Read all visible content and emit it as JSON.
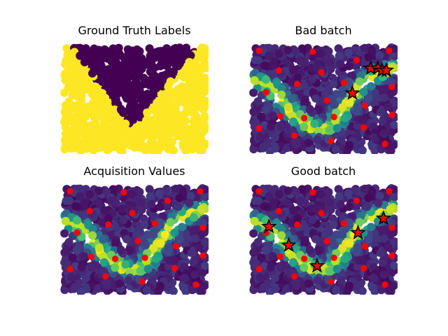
{
  "figure": {
    "panels": [
      {
        "title": "Ground Truth Labels"
      },
      {
        "title": "Bad batch"
      },
      {
        "title": "Acquisition Values"
      },
      {
        "title": "Good batch"
      }
    ]
  },
  "chart_data": [
    {
      "type": "scatter",
      "title": "Ground Truth Labels",
      "xlabel": "",
      "ylabel": "",
      "axes_visible": false,
      "xlim": [
        0,
        1
      ],
      "ylim": [
        0,
        1
      ],
      "colormap": "viridis",
      "field": "binary labels: yellow (1) left, right and bottom band; dark purple (0) inside a V shaped region with apex near (0.47, 0.22)",
      "label_region_v": {
        "apex": [
          0.47,
          0.22
        ],
        "left_top_x": 0.06,
        "right_top_x": 0.95
      },
      "colors": {
        "class0": "#440154",
        "class1": "#fde725",
        "marker": "#ff0000",
        "star": "#ff0000",
        "edge": "#000000"
      }
    },
    {
      "type": "scatter",
      "title": "Bad batch",
      "xlabel": "",
      "ylabel": "",
      "axes_visible": false,
      "xlim": [
        0,
        1
      ],
      "ylim": [
        0,
        1
      ],
      "colormap": "viridis",
      "field": "acquisition values, high along a curved band",
      "curve_band": [
        [
          0.02,
          0.68
        ],
        [
          0.12,
          0.62
        ],
        [
          0.22,
          0.45
        ],
        [
          0.32,
          0.32
        ],
        [
          0.42,
          0.22
        ],
        [
          0.5,
          0.21
        ],
        [
          0.58,
          0.28
        ],
        [
          0.66,
          0.45
        ],
        [
          0.74,
          0.6
        ],
        [
          0.84,
          0.73
        ],
        [
          0.94,
          0.78
        ],
        [
          1.0,
          0.8
        ]
      ],
      "labeled_points": [
        [
          0.04,
          0.97
        ],
        [
          0.42,
          0.96
        ],
        [
          0.73,
          0.88
        ],
        [
          0.96,
          0.97
        ],
        [
          0.18,
          0.78
        ],
        [
          0.48,
          0.76
        ],
        [
          0.31,
          0.65
        ],
        [
          0.64,
          0.66
        ],
        [
          0.09,
          0.57
        ],
        [
          0.52,
          0.49
        ],
        [
          0.79,
          0.44
        ],
        [
          0.98,
          0.62
        ],
        [
          0.19,
          0.34
        ],
        [
          0.36,
          0.32
        ],
        [
          0.57,
          0.33
        ],
        [
          0.98,
          0.35
        ],
        [
          0.04,
          0.22
        ],
        [
          0.29,
          0.15
        ],
        [
          0.78,
          0.23
        ],
        [
          0.55,
          0.1
        ],
        [
          0.93,
          0.07
        ]
      ],
      "batch_points": [
        [
          0.83,
          0.8
        ],
        [
          0.88,
          0.8
        ],
        [
          0.91,
          0.78
        ],
        [
          0.94,
          0.78
        ],
        [
          0.7,
          0.56
        ]
      ]
    },
    {
      "type": "scatter",
      "title": "Acquisition Values",
      "xlabel": "",
      "ylabel": "",
      "axes_visible": false,
      "xlim": [
        0,
        1
      ],
      "ylim": [
        0,
        1
      ],
      "colormap": "viridis",
      "field": "acquisition values, high along a curved band",
      "curve_band": [
        [
          0.02,
          0.68
        ],
        [
          0.12,
          0.62
        ],
        [
          0.22,
          0.45
        ],
        [
          0.32,
          0.32
        ],
        [
          0.42,
          0.22
        ],
        [
          0.5,
          0.21
        ],
        [
          0.58,
          0.28
        ],
        [
          0.66,
          0.45
        ],
        [
          0.74,
          0.6
        ],
        [
          0.84,
          0.73
        ],
        [
          0.94,
          0.78
        ],
        [
          1.0,
          0.8
        ]
      ],
      "labeled_points": [
        [
          0.04,
          0.97
        ],
        [
          0.42,
          0.96
        ],
        [
          0.73,
          0.88
        ],
        [
          0.96,
          0.97
        ],
        [
          0.18,
          0.78
        ],
        [
          0.48,
          0.76
        ],
        [
          0.31,
          0.65
        ],
        [
          0.64,
          0.66
        ],
        [
          0.09,
          0.57
        ],
        [
          0.52,
          0.49
        ],
        [
          0.79,
          0.44
        ],
        [
          0.98,
          0.62
        ],
        [
          0.19,
          0.34
        ],
        [
          0.36,
          0.32
        ],
        [
          0.57,
          0.33
        ],
        [
          0.98,
          0.35
        ],
        [
          0.04,
          0.22
        ],
        [
          0.29,
          0.15
        ],
        [
          0.78,
          0.23
        ],
        [
          0.55,
          0.1
        ],
        [
          0.93,
          0.07
        ]
      ],
      "batch_points": []
    },
    {
      "type": "scatter",
      "title": "Good batch",
      "xlabel": "",
      "ylabel": "",
      "axes_visible": false,
      "xlim": [
        0,
        1
      ],
      "ylim": [
        0,
        1
      ],
      "colormap": "viridis",
      "field": "acquisition values, high along a curved band",
      "curve_band": [
        [
          0.02,
          0.68
        ],
        [
          0.12,
          0.62
        ],
        [
          0.22,
          0.45
        ],
        [
          0.32,
          0.32
        ],
        [
          0.42,
          0.22
        ],
        [
          0.5,
          0.21
        ],
        [
          0.58,
          0.28
        ],
        [
          0.66,
          0.45
        ],
        [
          0.74,
          0.6
        ],
        [
          0.84,
          0.73
        ],
        [
          0.94,
          0.78
        ],
        [
          1.0,
          0.8
        ]
      ],
      "labeled_points": [
        [
          0.04,
          0.97
        ],
        [
          0.42,
          0.96
        ],
        [
          0.73,
          0.88
        ],
        [
          0.96,
          0.97
        ],
        [
          0.18,
          0.78
        ],
        [
          0.48,
          0.76
        ],
        [
          0.31,
          0.65
        ],
        [
          0.64,
          0.66
        ],
        [
          0.09,
          0.57
        ],
        [
          0.52,
          0.49
        ],
        [
          0.79,
          0.44
        ],
        [
          0.98,
          0.62
        ],
        [
          0.19,
          0.34
        ],
        [
          0.36,
          0.32
        ],
        [
          0.57,
          0.33
        ],
        [
          0.98,
          0.35
        ],
        [
          0.04,
          0.22
        ],
        [
          0.29,
          0.15
        ],
        [
          0.78,
          0.23
        ],
        [
          0.55,
          0.1
        ],
        [
          0.93,
          0.07
        ]
      ],
      "batch_points": [
        [
          0.11,
          0.63
        ],
        [
          0.25,
          0.45
        ],
        [
          0.45,
          0.25
        ],
        [
          0.74,
          0.57
        ],
        [
          0.92,
          0.71
        ]
      ]
    }
  ]
}
